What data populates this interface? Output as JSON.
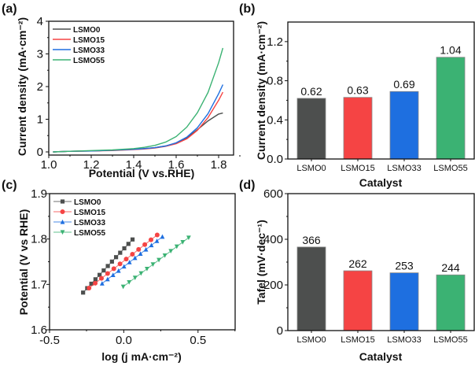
{
  "colors": {
    "LSMO0": "#4d4f4e",
    "LSMO15": "#f54444",
    "LSMO33": "#1e6fe0",
    "LSMO55": "#3bb273"
  },
  "chart_data": [
    {
      "panel": "(a)",
      "type": "line",
      "title": "",
      "xlabel": "Potential (V vs.RHE)",
      "ylabel": "Current density (mA·cm⁻²)",
      "xlim": [
        1.0,
        1.9
      ],
      "ylim": [
        -0.1,
        4
      ],
      "xticks": [
        "1.0",
        "1.2",
        "1.4",
        "1.6",
        "1.8"
      ],
      "yticks": [
        "0",
        "1",
        "2",
        "3",
        "4"
      ],
      "legend": "top-left",
      "x": [
        1.02,
        1.1,
        1.2,
        1.3,
        1.4,
        1.45,
        1.5,
        1.55,
        1.6,
        1.65,
        1.7,
        1.75,
        1.8,
        1.82
      ],
      "series": [
        {
          "name": "LSMO0",
          "values": [
            0.0,
            0.02,
            0.03,
            0.05,
            0.08,
            0.1,
            0.13,
            0.18,
            0.27,
            0.43,
            0.68,
            0.95,
            1.16,
            1.19
          ]
        },
        {
          "name": "LSMO15",
          "values": [
            0.0,
            0.02,
            0.03,
            0.04,
            0.07,
            0.09,
            0.12,
            0.17,
            0.25,
            0.4,
            0.66,
            1.05,
            1.58,
            1.83
          ]
        },
        {
          "name": "LSMO33",
          "values": [
            0.0,
            0.02,
            0.03,
            0.05,
            0.08,
            0.1,
            0.13,
            0.18,
            0.28,
            0.45,
            0.74,
            1.17,
            1.78,
            2.06
          ]
        },
        {
          "name": "LSMO55",
          "values": [
            0.0,
            0.02,
            0.04,
            0.06,
            0.1,
            0.14,
            0.2,
            0.3,
            0.47,
            0.76,
            1.2,
            1.82,
            2.73,
            3.18
          ]
        }
      ]
    },
    {
      "panel": "(b)",
      "type": "bar",
      "title": "",
      "xlabel": "Catalyst",
      "ylabel": "Current density (mA·cm⁻²)",
      "ylim": [
        0,
        1.4
      ],
      "yticks": [
        "0.0",
        "0.4",
        "0.8",
        "1.2"
      ],
      "categories": [
        "LSMO0",
        "LSMO15",
        "LSMO33",
        "LSMO55"
      ],
      "values": [
        0.62,
        0.63,
        0.69,
        1.04
      ],
      "data_labels": [
        "0.62",
        "0.63",
        "0.69",
        "1.04"
      ]
    },
    {
      "panel": "(c)",
      "type": "scatter",
      "title": "",
      "xlabel": "log (j mA·cm⁻²)",
      "ylabel": "Potential (V vs RHE)",
      "xlim": [
        -0.5,
        0.75
      ],
      "ylim": [
        1.6,
        1.9
      ],
      "xticks": [
        "-0.5",
        "0.0",
        "0.5"
      ],
      "yticks": [
        "1.6",
        "1.7",
        "1.8",
        "1.9"
      ],
      "legend": "top-left",
      "series": [
        {
          "name": "LSMO0",
          "marker": "square",
          "x_start": -0.274,
          "x_end": 0.059,
          "y_start": 1.682,
          "y_end": 1.799,
          "points": 13
        },
        {
          "name": "LSMO15",
          "marker": "circle",
          "x_start": -0.234,
          "x_end": 0.225,
          "y_start": 1.692,
          "y_end": 1.809,
          "points": 12
        },
        {
          "name": "LSMO33",
          "marker": "triangle-up",
          "x_start": -0.146,
          "x_end": 0.26,
          "y_start": 1.702,
          "y_end": 1.805,
          "points": 12
        },
        {
          "name": "LSMO55",
          "marker": "triangle-down",
          "x_start": -0.004,
          "x_end": 0.437,
          "y_start": 1.695,
          "y_end": 1.803,
          "points": 12
        }
      ]
    },
    {
      "panel": "(d)",
      "type": "bar",
      "title": "",
      "xlabel": "Catalyst",
      "ylabel": "Tafel (mV·dec⁻¹)",
      "ylim": [
        0,
        600
      ],
      "yticks": [
        "0",
        "200",
        "400",
        "600"
      ],
      "categories": [
        "LSMO0",
        "LSMO15",
        "LSMO33",
        "LSMO55"
      ],
      "values": [
        366,
        262,
        253,
        244
      ],
      "data_labels": [
        "366",
        "262",
        "253",
        "244"
      ]
    }
  ]
}
